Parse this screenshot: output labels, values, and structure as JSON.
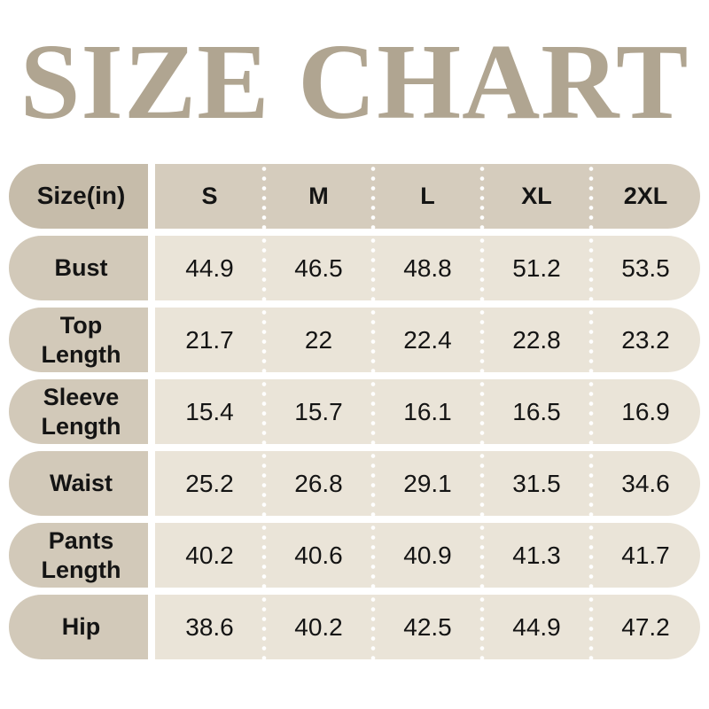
{
  "title": "SIZE CHART",
  "colors": {
    "title": "#b0a591",
    "header_label_bg": "#c6bcaa",
    "header_bg": "#d5ccbd",
    "row_label_bg": "#d2c9b9",
    "cell_bg": "#eae4d8",
    "text": "#141414",
    "dot_separator": "#ffffff",
    "page_bg": "#ffffff"
  },
  "table": {
    "unit_label": "Size(in)",
    "columns": [
      "S",
      "M",
      "L",
      "XL",
      "2XL"
    ],
    "rows": [
      {
        "label": "Bust",
        "values": [
          "44.9",
          "46.5",
          "48.8",
          "51.2",
          "53.5"
        ]
      },
      {
        "label": "Top Length",
        "values": [
          "21.7",
          "22",
          "22.4",
          "22.8",
          "23.2"
        ]
      },
      {
        "label": "Sleeve Length",
        "values": [
          "15.4",
          "15.7",
          "16.1",
          "16.5",
          "16.9"
        ]
      },
      {
        "label": "Waist",
        "values": [
          "25.2",
          "26.8",
          "29.1",
          "31.5",
          "34.6"
        ]
      },
      {
        "label": "Pants Length",
        "values": [
          "40.2",
          "40.6",
          "40.9",
          "41.3",
          "41.7"
        ]
      },
      {
        "label": "Hip",
        "values": [
          "38.6",
          "40.2",
          "42.5",
          "44.9",
          "47.2"
        ]
      }
    ]
  },
  "chart_data": {
    "type": "table",
    "title": "SIZE CHART",
    "unit": "inches",
    "columns": [
      "S",
      "M",
      "L",
      "XL",
      "2XL"
    ],
    "series": [
      {
        "name": "Bust",
        "values": [
          44.9,
          46.5,
          48.8,
          51.2,
          53.5
        ]
      },
      {
        "name": "Top Length",
        "values": [
          21.7,
          22,
          22.4,
          22.8,
          23.2
        ]
      },
      {
        "name": "Sleeve Length",
        "values": [
          15.4,
          15.7,
          16.1,
          16.5,
          16.9
        ]
      },
      {
        "name": "Waist",
        "values": [
          25.2,
          26.8,
          29.1,
          31.5,
          34.6
        ]
      },
      {
        "name": "Pants Length",
        "values": [
          40.2,
          40.6,
          40.9,
          41.3,
          41.7
        ]
      },
      {
        "name": "Hip",
        "values": [
          38.6,
          40.2,
          42.5,
          44.9,
          47.2
        ]
      }
    ]
  }
}
